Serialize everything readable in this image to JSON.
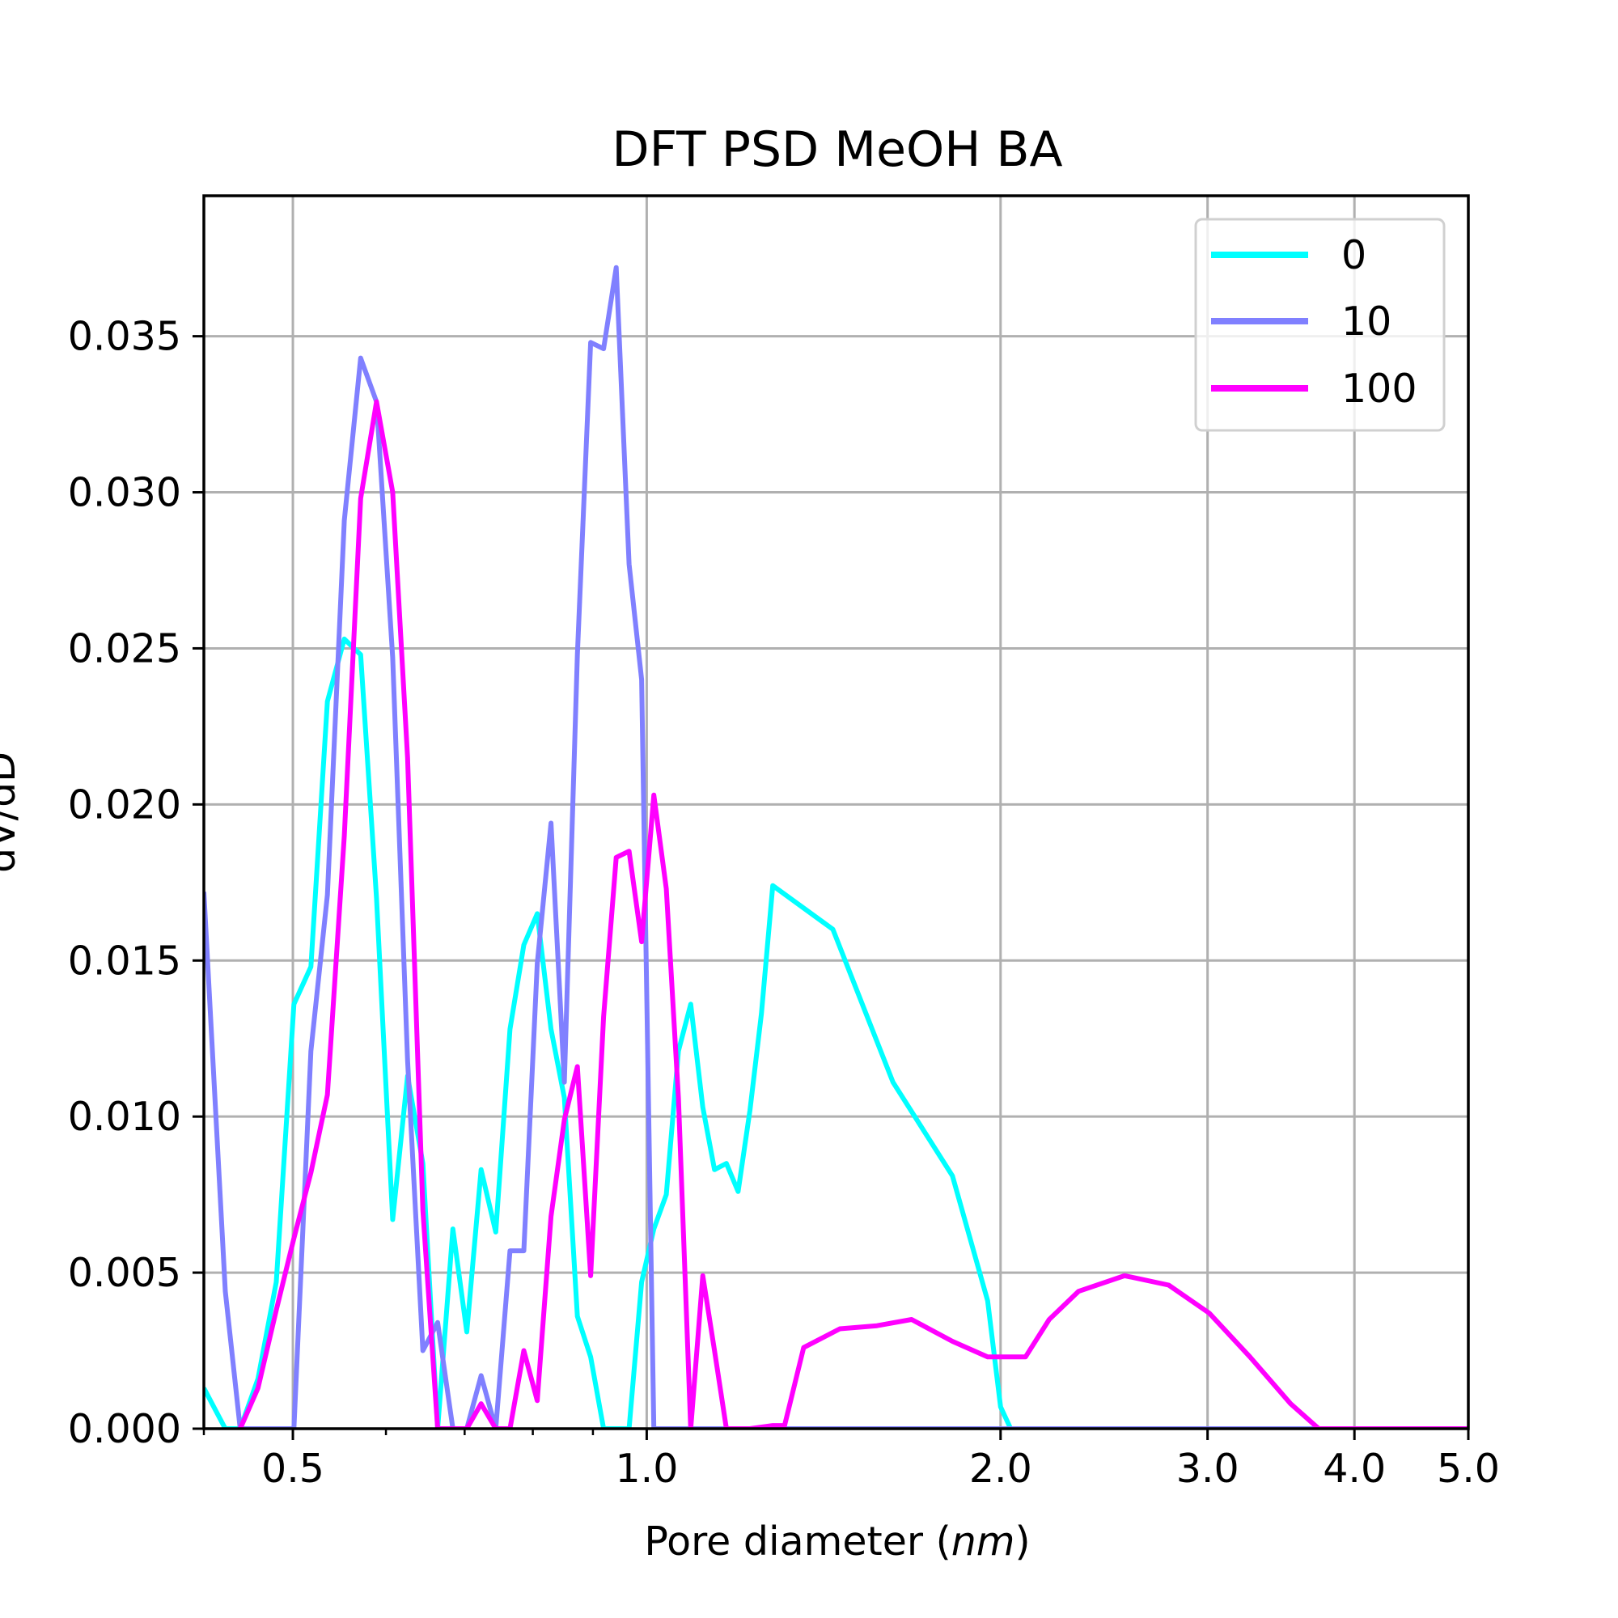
{
  "chart_data": {
    "type": "line",
    "title": "DFT PSD MeOH BA",
    "xlabel_prefix": "Pore diameter (",
    "xlabel_unit": "nm",
    "xlabel_suffix": ")",
    "ylabel": "dV/dD",
    "xscale": "log",
    "xlim": [
      0.42,
      5.0
    ],
    "ylim": [
      0,
      0.0395
    ],
    "grid": true,
    "legend_position": "top-right",
    "x_ticks": [
      {
        "value": 0.5,
        "label": "0.5"
      },
      {
        "value": 1.0,
        "label": "1.0"
      },
      {
        "value": 2.0,
        "label": "2.0"
      },
      {
        "value": 3.0,
        "label": "3.0"
      },
      {
        "value": 4.0,
        "label": "4.0"
      },
      {
        "value": 5.0,
        "label": "5.0"
      }
    ],
    "x_minor_ticks": [
      0.42,
      0.6,
      0.7,
      0.8,
      0.9
    ],
    "y_ticks": [
      {
        "value": 0.0,
        "label": "0.000"
      },
      {
        "value": 0.005,
        "label": "0.005"
      },
      {
        "value": 0.01,
        "label": "0.010"
      },
      {
        "value": 0.015,
        "label": "0.015"
      },
      {
        "value": 0.02,
        "label": "0.020"
      },
      {
        "value": 0.025,
        "label": "0.025"
      },
      {
        "value": 0.03,
        "label": "0.030"
      },
      {
        "value": 0.035,
        "label": "0.035"
      }
    ],
    "series": [
      {
        "name": "0",
        "color": "#00ffff",
        "points": [
          [
            0.42,
            0.0013
          ],
          [
            0.438,
            0.0
          ],
          [
            0.451,
            0.0
          ],
          [
            0.467,
            0.0016
          ],
          [
            0.484,
            0.0047
          ],
          [
            0.501,
            0.0136
          ],
          [
            0.518,
            0.0148
          ],
          [
            0.535,
            0.0233
          ],
          [
            0.553,
            0.0253
          ],
          [
            0.571,
            0.0248
          ],
          [
            0.589,
            0.017
          ],
          [
            0.608,
            0.0067
          ],
          [
            0.626,
            0.0113
          ],
          [
            0.645,
            0.0085
          ],
          [
            0.664,
            0.0
          ],
          [
            0.684,
            0.0064
          ],
          [
            0.703,
            0.0031
          ],
          [
            0.723,
            0.0083
          ],
          [
            0.744,
            0.0063
          ],
          [
            0.765,
            0.0128
          ],
          [
            0.786,
            0.0155
          ],
          [
            0.807,
            0.0165
          ],
          [
            0.829,
            0.0128
          ],
          [
            0.851,
            0.0106
          ],
          [
            0.873,
            0.0036
          ],
          [
            0.896,
            0.0023
          ],
          [
            0.919,
            0.0
          ],
          [
            0.942,
            0.0
          ],
          [
            0.966,
            0.0
          ],
          [
            0.99,
            0.0047
          ],
          [
            1.014,
            0.0064
          ],
          [
            1.039,
            0.0075
          ],
          [
            1.064,
            0.0121
          ],
          [
            1.09,
            0.0136
          ],
          [
            1.116,
            0.0103
          ],
          [
            1.142,
            0.0083
          ],
          [
            1.169,
            0.0085
          ],
          [
            1.196,
            0.0076
          ],
          [
            1.224,
            0.0102
          ],
          [
            1.252,
            0.0133
          ],
          [
            1.28,
            0.0174
          ],
          [
            1.44,
            0.016
          ],
          [
            1.62,
            0.0111
          ],
          [
            1.82,
            0.0081
          ],
          [
            1.95,
            0.0041
          ],
          [
            2.0,
            0.0007
          ],
          [
            2.04,
            0.0
          ],
          [
            5.0,
            0.0
          ]
        ]
      },
      {
        "name": "10",
        "color": "#8080ff",
        "points": [
          [
            0.42,
            0.0172
          ],
          [
            0.438,
            0.0044
          ],
          [
            0.451,
            0.0
          ],
          [
            0.467,
            0.0
          ],
          [
            0.484,
            0.0
          ],
          [
            0.501,
            0.0
          ],
          [
            0.518,
            0.0121
          ],
          [
            0.535,
            0.0171
          ],
          [
            0.553,
            0.0291
          ],
          [
            0.571,
            0.0343
          ],
          [
            0.589,
            0.0329
          ],
          [
            0.608,
            0.0247
          ],
          [
            0.626,
            0.0118
          ],
          [
            0.645,
            0.0025
          ],
          [
            0.664,
            0.0034
          ],
          [
            0.684,
            0.0
          ],
          [
            0.703,
            0.0
          ],
          [
            0.723,
            0.0017
          ],
          [
            0.744,
            0.0
          ],
          [
            0.765,
            0.0057
          ],
          [
            0.786,
            0.0057
          ],
          [
            0.807,
            0.0149
          ],
          [
            0.829,
            0.0194
          ],
          [
            0.851,
            0.0111
          ],
          [
            0.873,
            0.0248
          ],
          [
            0.896,
            0.0348
          ],
          [
            0.919,
            0.0346
          ],
          [
            0.942,
            0.0372
          ],
          [
            0.966,
            0.0277
          ],
          [
            0.99,
            0.024
          ],
          [
            1.014,
            0.0
          ],
          [
            1.28,
            0.0
          ],
          [
            5.0,
            0.0
          ]
        ]
      },
      {
        "name": "100",
        "color": "#ff00ff",
        "points": [
          [
            0.451,
            0.0
          ],
          [
            0.467,
            0.0013
          ],
          [
            0.484,
            0.0038
          ],
          [
            0.501,
            0.0061
          ],
          [
            0.518,
            0.0082
          ],
          [
            0.535,
            0.0107
          ],
          [
            0.553,
            0.019
          ],
          [
            0.571,
            0.0298
          ],
          [
            0.589,
            0.0329
          ],
          [
            0.608,
            0.03
          ],
          [
            0.626,
            0.0215
          ],
          [
            0.645,
            0.007
          ],
          [
            0.664,
            0.0
          ],
          [
            0.684,
            0.0
          ],
          [
            0.703,
            0.0
          ],
          [
            0.723,
            0.0008
          ],
          [
            0.744,
            0.0
          ],
          [
            0.765,
            0.0
          ],
          [
            0.786,
            0.0025
          ],
          [
            0.807,
            0.0009
          ],
          [
            0.829,
            0.0068
          ],
          [
            0.851,
            0.0099
          ],
          [
            0.873,
            0.0116
          ],
          [
            0.896,
            0.0049
          ],
          [
            0.919,
            0.0132
          ],
          [
            0.942,
            0.0183
          ],
          [
            0.966,
            0.0185
          ],
          [
            0.99,
            0.0156
          ],
          [
            1.014,
            0.0203
          ],
          [
            1.039,
            0.0173
          ],
          [
            1.064,
            0.0106
          ],
          [
            1.09,
            0.0
          ],
          [
            1.116,
            0.0049
          ],
          [
            1.142,
            0.0025
          ],
          [
            1.169,
            0.0
          ],
          [
            1.196,
            0.0
          ],
          [
            1.224,
            0.0
          ],
          [
            1.28,
            0.0001
          ],
          [
            1.31,
            0.0001
          ],
          [
            1.36,
            0.0026
          ],
          [
            1.46,
            0.0032
          ],
          [
            1.57,
            0.0033
          ],
          [
            1.68,
            0.0035
          ],
          [
            1.82,
            0.0028
          ],
          [
            1.95,
            0.0023
          ],
          [
            2.1,
            0.0023
          ],
          [
            2.2,
            0.0035
          ],
          [
            2.33,
            0.0044
          ],
          [
            2.55,
            0.0049
          ],
          [
            2.78,
            0.0046
          ],
          [
            3.01,
            0.0037
          ],
          [
            3.26,
            0.0023
          ],
          [
            3.53,
            0.0008
          ],
          [
            3.73,
            0.0
          ],
          [
            5.0,
            0.0
          ]
        ]
      }
    ]
  }
}
